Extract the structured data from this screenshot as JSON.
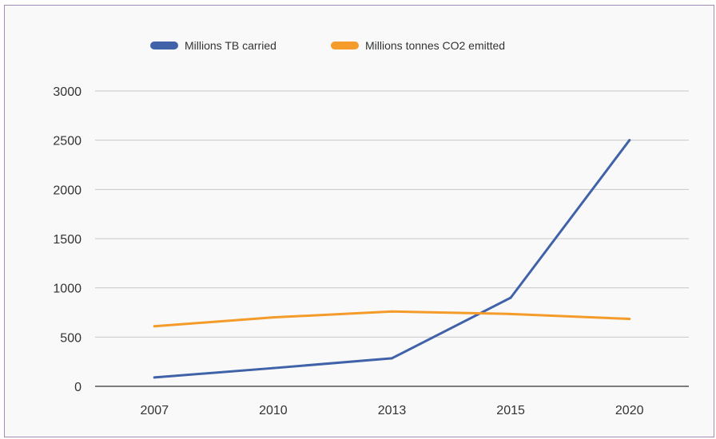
{
  "chart_data": {
    "type": "line",
    "categories": [
      "2007",
      "2010",
      "2013",
      "2015",
      "2020"
    ],
    "series": [
      {
        "name": "Millions TB carried",
        "values": [
          90,
          185,
          285,
          900,
          2500
        ],
        "color": "#4062a8"
      },
      {
        "name": "Millions tonnes CO2 emitted",
        "values": [
          610,
          700,
          760,
          735,
          685
        ],
        "color": "#f49b2a"
      }
    ],
    "yticks": [
      0,
      500,
      1000,
      1500,
      2000,
      2500,
      3000
    ],
    "ylim": [
      0,
      3000
    ],
    "grid": true,
    "legend": "top"
  }
}
